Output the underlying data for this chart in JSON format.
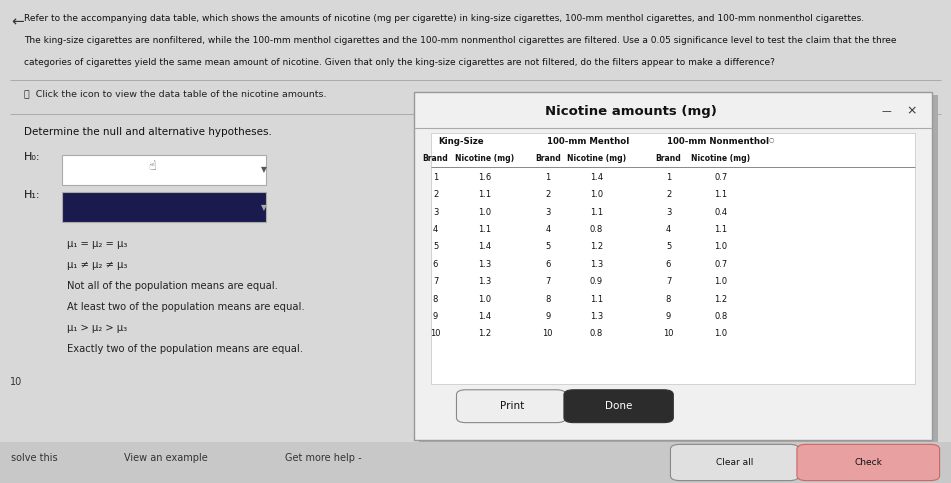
{
  "header_text_line1": "Refer to the accompanying data table, which shows the amounts of nicotine (mg per cigarette) in king-size cigarettes, 100-mm menthol cigarettes, and 100-mm nonmenthol cigarettes.",
  "header_text_line2": "The king-size cigarettes are nonfiltered, while the 100-mm menthol cigarettes and the 100-mm nonmenthol cigarettes are filtered. Use a 0.05 significance level to test the claim that the three",
  "header_text_line3": "categories of cigarettes yield the same mean amount of nicotine. Given that only the king-size cigarettes are not filtered, do the filters appear to make a difference?",
  "click_text": "Click the icon to view the data table of the nicotine amounts.",
  "determine_text": "Determine the null and alternative hypotheses.",
  "h0_label": "H₀:",
  "h1_label": "H₁:",
  "option1": "μ₁ = μ₂ = μ₃",
  "option2": "μ₁ ≠ μ₂ ≠ μ₃",
  "option3": "Not all of the population means are equal.",
  "option4": "At least two of the population means are equal.",
  "option5": "μ₁ > μ₂ > μ₃",
  "option6": "Exactly two of the population means are equal.",
  "dialog_title": "Nicotine amounts (mg)",
  "col_headers": [
    "King-Size",
    "100-mm Menthol",
    "100-mm Nonmenthol"
  ],
  "sub_headers": [
    "Brand",
    "Nicotine (mg)",
    "Brand",
    "Nicotine (mg)",
    "Brand",
    "Nicotine (mg)"
  ],
  "king_size_brand": [
    1,
    2,
    3,
    4,
    5,
    6,
    7,
    8,
    9,
    10
  ],
  "king_size_nicotine": [
    1.6,
    1.1,
    1.0,
    1.1,
    1.4,
    1.3,
    1.3,
    1.0,
    1.4,
    1.2
  ],
  "menthol_brand": [
    1,
    2,
    3,
    4,
    5,
    6,
    7,
    8,
    9,
    10
  ],
  "menthol_nicotine": [
    1.4,
    1.0,
    1.1,
    0.8,
    1.2,
    1.3,
    0.9,
    1.1,
    1.3,
    0.8
  ],
  "nonmenthol_brand": [
    1,
    2,
    3,
    4,
    5,
    6,
    7,
    8,
    9,
    10
  ],
  "nonmenthol_nicotine": [
    0.7,
    1.1,
    0.4,
    1.1,
    1.0,
    0.7,
    1.0,
    1.2,
    0.8,
    1.0
  ],
  "print_btn_text": "Print",
  "done_btn_text": "Done",
  "solve_text": "solve this",
  "view_example_text": "View an example",
  "get_help_text": "Get more help -",
  "clear_text": "Clear all",
  "bg_color": "#d0d0d0",
  "dialog_bg": "#f5f5f5",
  "table_bg": "#ffffff",
  "done_btn_color": "#2c2c2c",
  "print_btn_color": "#f0f0f0"
}
